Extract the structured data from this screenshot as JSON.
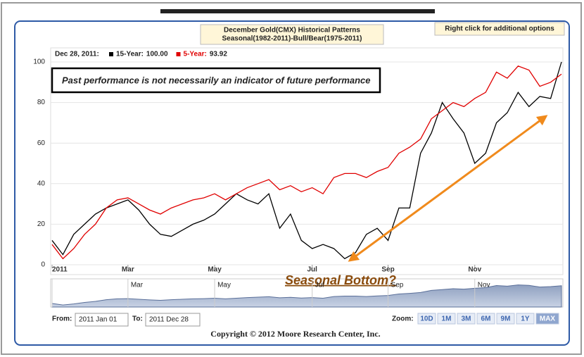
{
  "chart_data": {
    "type": "line",
    "title": "December Gold(CMX) Historical Patterns",
    "subtitle": "Seasonal(1982-2011)-Bull/Bear(1975-2011)",
    "legend_date": "Dec 28, 2011:",
    "categories": [
      "2011",
      null,
      null,
      null,
      null,
      null,
      null,
      "Mar",
      null,
      null,
      null,
      null,
      null,
      null,
      null,
      "May",
      null,
      null,
      null,
      null,
      null,
      null,
      null,
      null,
      "Jul",
      null,
      null,
      null,
      null,
      null,
      null,
      "Sep",
      null,
      null,
      null,
      null,
      null,
      null,
      null,
      "Nov",
      null,
      null,
      null,
      null,
      null,
      null,
      null,
      null
    ],
    "series": [
      {
        "name": "15-Year:",
        "current_label": "100.00",
        "color": "#000000",
        "values": [
          12,
          5,
          15,
          20,
          25,
          28,
          30,
          32,
          27,
          20,
          15,
          14,
          17,
          20,
          22,
          25,
          30,
          35,
          32,
          30,
          35,
          18,
          25,
          12,
          8,
          10,
          8,
          3,
          6,
          15,
          18,
          12,
          28,
          28,
          55,
          65,
          80,
          72,
          65,
          50,
          55,
          70,
          75,
          85,
          78,
          83,
          82,
          100
        ]
      },
      {
        "name": "5-Year:",
        "current_label": "93.92",
        "color": "#e00000",
        "values": [
          10,
          3,
          8,
          15,
          20,
          28,
          32,
          33,
          30,
          27,
          25,
          28,
          30,
          32,
          33,
          35,
          32,
          35,
          38,
          40,
          42,
          37,
          39,
          36,
          38,
          35,
          43,
          45,
          45,
          43,
          46,
          48,
          55,
          58,
          62,
          72,
          76,
          80,
          78,
          82,
          85,
          95,
          92,
          98,
          96,
          88,
          90,
          94
        ]
      }
    ],
    "ylim": [
      0,
      100
    ],
    "yticks": [
      0,
      20,
      40,
      60,
      80,
      100
    ],
    "grid": true,
    "annotations": [
      "Past performance is not necessarily an indicator of future performance",
      "Seasonal Bottom?"
    ]
  },
  "ui": {
    "options_hint": "Right click for additional options",
    "from_label": "From:",
    "from_value": "2011 Jan 01",
    "to_label": "To:",
    "to_value": "2011 Dec 28",
    "zoom_label": "Zoom:",
    "zoom_buttons": [
      "10D",
      "1M",
      "3M",
      "6M",
      "9M",
      "1Y",
      "MAX"
    ],
    "copyright": "Copyright © 2012 Moore Research Center, Inc."
  }
}
